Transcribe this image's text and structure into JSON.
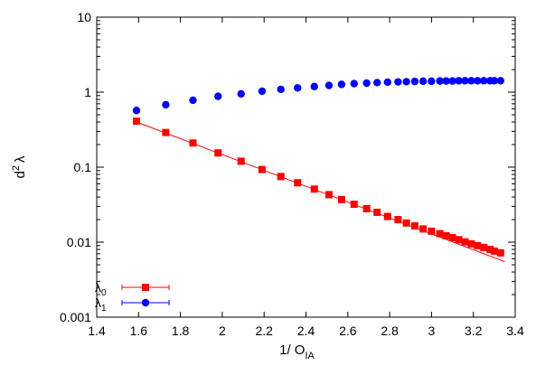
{
  "chart_data": {
    "type": "scatter",
    "xlabel": "1/ O",
    "xlabel_sub": "IA",
    "ylabel": "d",
    "ylabel_sup": "2",
    "ylabel_tail": "λ",
    "xlim": [
      1.4,
      3.4
    ],
    "ylim": [
      0.001,
      10
    ],
    "yscale": "log",
    "x_ticks": [
      "1.4",
      "1.6",
      "1.8",
      "2",
      "2.2",
      "2.4",
      "2.6",
      "2.8",
      "3",
      "3.2",
      "3.4"
    ],
    "y_ticks": [
      "0.001",
      "0.01",
      "0.1",
      "1",
      "10"
    ],
    "grid": false,
    "legend_position": "bottom-left",
    "series": [
      {
        "name": "λ",
        "name_sub": "0",
        "color": "#ff0000",
        "marker": "square",
        "x": [
          1.59,
          1.73,
          1.86,
          1.98,
          2.09,
          2.19,
          2.28,
          2.36,
          2.44,
          2.51,
          2.57,
          2.63,
          2.69,
          2.74,
          2.79,
          2.84,
          2.88,
          2.92,
          2.96,
          3.0,
          3.04,
          3.07,
          3.1,
          3.13,
          3.16,
          3.19,
          3.22,
          3.25,
          3.28,
          3.3,
          3.33
        ],
        "y": [
          0.41,
          0.29,
          0.21,
          0.155,
          0.12,
          0.093,
          0.075,
          0.062,
          0.051,
          0.043,
          0.037,
          0.032,
          0.028,
          0.025,
          0.022,
          0.02,
          0.018,
          0.0165,
          0.015,
          0.014,
          0.013,
          0.0122,
          0.0115,
          0.0108,
          0.0101,
          0.0095,
          0.009,
          0.0085,
          0.008,
          0.0076,
          0.0072
        ],
        "fit_line": {
          "x": [
            1.59,
            3.35
          ],
          "y": [
            0.4,
            0.0055
          ]
        }
      },
      {
        "name": "λ",
        "name_sub": "1",
        "color": "#0000ff",
        "marker": "circle",
        "x": [
          1.59,
          1.73,
          1.86,
          1.98,
          2.09,
          2.19,
          2.28,
          2.36,
          2.44,
          2.51,
          2.57,
          2.63,
          2.69,
          2.74,
          2.79,
          2.84,
          2.88,
          2.92,
          2.96,
          3.0,
          3.04,
          3.07,
          3.1,
          3.13,
          3.16,
          3.19,
          3.22,
          3.25,
          3.28,
          3.3,
          3.33
        ],
        "y": [
          0.57,
          0.68,
          0.78,
          0.88,
          0.95,
          1.03,
          1.09,
          1.14,
          1.19,
          1.23,
          1.27,
          1.3,
          1.32,
          1.34,
          1.36,
          1.37,
          1.38,
          1.39,
          1.4,
          1.4,
          1.41,
          1.41,
          1.41,
          1.42,
          1.42,
          1.42,
          1.42,
          1.42,
          1.42,
          1.42,
          1.42
        ]
      }
    ]
  }
}
